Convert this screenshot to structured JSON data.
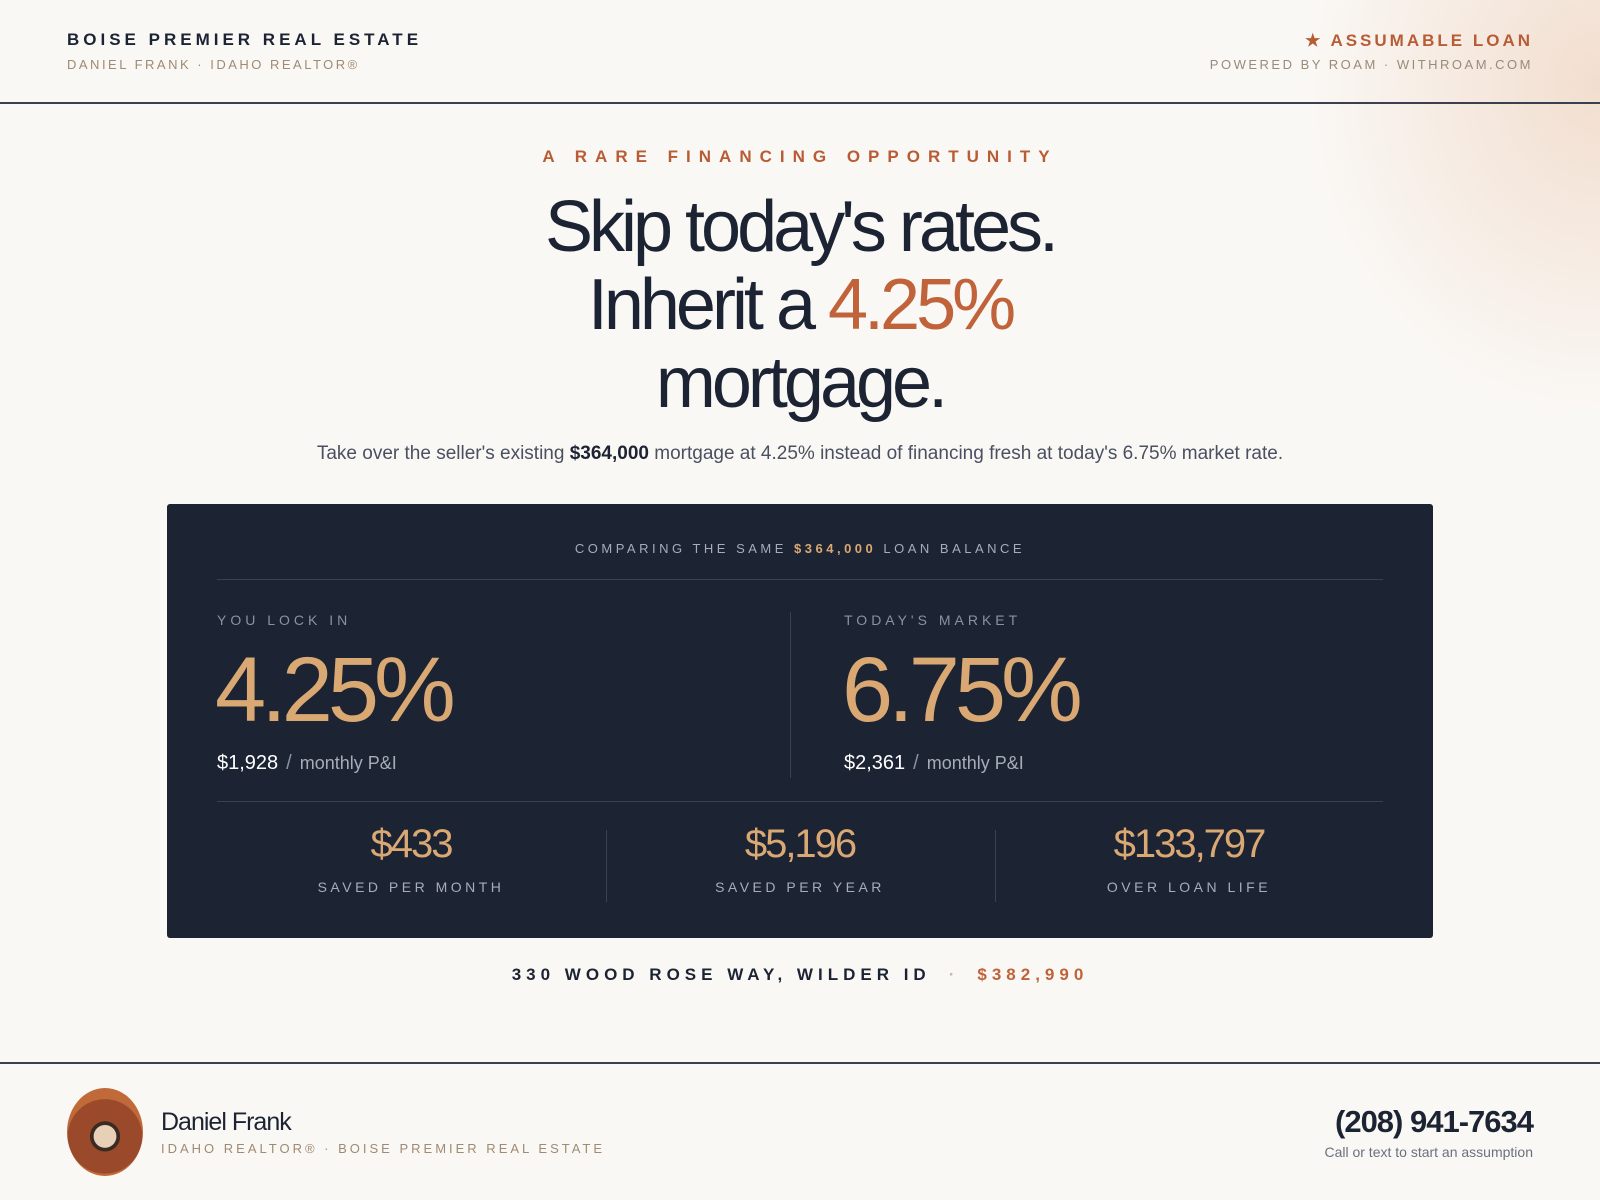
{
  "header": {
    "brand": "BOISE PREMIER REAL ESTATE",
    "agent_line": "DANIEL FRANK · IDAHO REALTOR®",
    "badge": "★ ASSUMABLE LOAN",
    "powered_by": "POWERED BY ROAM · WITHROAM.COM"
  },
  "hero": {
    "eyebrow": "A RARE FINANCING OPPORTUNITY",
    "headline_line1": "Skip today's rates.",
    "headline_line2_prefix": "Inherit a ",
    "headline_line2_rate": "4.25%",
    "headline_line3": "mortgage.",
    "subtext_prefix": "Take over the seller's existing ",
    "subtext_amount": "$364,000",
    "subtext_suffix": " mortgage at 4.25% instead of financing fresh at today's 6.75% market rate."
  },
  "comparison": {
    "caption_prefix": "COMPARING THE SAME ",
    "caption_amount": "$364,000",
    "caption_suffix": " LOAN BALANCE",
    "left": {
      "label": "YOU LOCK IN",
      "rate": "4.25%",
      "payment": "$1,928",
      "separator": "/",
      "unit": "monthly P&I"
    },
    "right": {
      "label": "TODAY'S MARKET",
      "rate": "6.75%",
      "payment": "$2,361",
      "separator": "/",
      "unit": "monthly P&I"
    },
    "savings": [
      {
        "value": "$433",
        "label": "SAVED PER MONTH"
      },
      {
        "value": "$5,196",
        "label": "SAVED PER YEAR"
      },
      {
        "value": "$133,797",
        "label": "OVER LOAN LIFE"
      }
    ]
  },
  "property": {
    "address": "330 WOOD ROSE WAY, WILDER ID",
    "separator": "·",
    "price": "$382,990"
  },
  "footer": {
    "name": "Daniel Frank",
    "subtitle": "IDAHO REALTOR® · BOISE PREMIER REAL ESTATE",
    "phone": "(208) 941-7634",
    "cta": "Call or text to start an assumption"
  }
}
